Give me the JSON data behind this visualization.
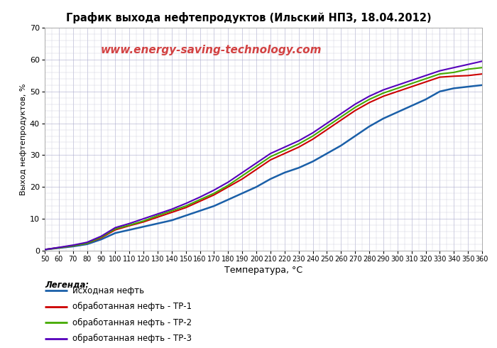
{
  "title": "График выхода нефтепродуктов (Ильский НПЗ, 18.04.2012)",
  "xlabel": "Температура, °С",
  "ylabel": "Выход нефтепродуктов, %",
  "watermark": "www.energy-saving-technology.com",
  "legend_title": "Легенда:",
  "legend_entries": [
    "исходная нефть",
    "обработанная нефть - ТР-1",
    "обработанная нефть - ТР-2",
    "обработанная нефть - ТР-3"
  ],
  "line_colors": [
    "#1a5fa8",
    "#cc0000",
    "#44aa00",
    "#5500bb"
  ],
  "xlim": [
    50,
    360
  ],
  "ylim": [
    0,
    70
  ],
  "xticks": [
    50,
    60,
    70,
    80,
    90,
    100,
    110,
    120,
    130,
    140,
    150,
    160,
    170,
    180,
    190,
    200,
    210,
    220,
    230,
    240,
    250,
    260,
    270,
    280,
    290,
    300,
    310,
    320,
    330,
    340,
    350,
    360
  ],
  "yticks": [
    0,
    10,
    20,
    30,
    40,
    50,
    60,
    70
  ],
  "temperatures": [
    50,
    60,
    70,
    80,
    90,
    100,
    110,
    120,
    130,
    140,
    150,
    160,
    170,
    180,
    190,
    200,
    210,
    220,
    230,
    240,
    250,
    260,
    270,
    280,
    290,
    300,
    310,
    320,
    330,
    340,
    350,
    360
  ],
  "curve_original": [
    0.3,
    0.8,
    1.3,
    2.0,
    3.5,
    5.5,
    6.5,
    7.5,
    8.5,
    9.5,
    11.0,
    12.5,
    14.0,
    16.0,
    18.0,
    20.0,
    22.5,
    24.5,
    26.0,
    28.0,
    30.5,
    33.0,
    36.0,
    39.0,
    41.5,
    43.5,
    45.5,
    47.5,
    50.0,
    51.0,
    51.5,
    52.0
  ],
  "curve_tr1": [
    0.3,
    0.9,
    1.5,
    2.3,
    4.0,
    6.5,
    7.8,
    9.0,
    10.5,
    12.0,
    13.5,
    15.5,
    17.5,
    20.0,
    22.5,
    25.5,
    28.5,
    30.5,
    32.5,
    35.0,
    38.0,
    41.0,
    44.0,
    46.5,
    48.5,
    50.0,
    51.5,
    53.0,
    54.5,
    54.8,
    55.0,
    55.5
  ],
  "curve_tr2": [
    0.3,
    0.9,
    1.5,
    2.3,
    4.2,
    6.8,
    8.0,
    9.3,
    11.0,
    12.5,
    14.0,
    16.0,
    18.0,
    20.5,
    23.5,
    26.5,
    29.5,
    31.5,
    33.5,
    36.0,
    39.0,
    42.0,
    45.0,
    47.5,
    49.5,
    51.0,
    52.5,
    54.0,
    55.5,
    56.0,
    57.0,
    57.5
  ],
  "curve_tr3": [
    0.3,
    1.0,
    1.7,
    2.6,
    4.5,
    7.2,
    8.5,
    10.0,
    11.5,
    13.0,
    14.8,
    16.8,
    19.0,
    21.5,
    24.5,
    27.5,
    30.5,
    32.5,
    34.5,
    37.0,
    40.0,
    43.0,
    46.0,
    48.5,
    50.5,
    52.0,
    53.5,
    55.0,
    56.5,
    57.5,
    58.5,
    59.5
  ]
}
